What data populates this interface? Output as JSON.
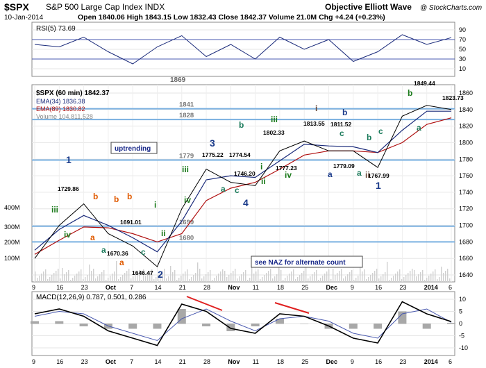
{
  "header": {
    "symbol": "$SPX",
    "description": "S&P 500 Large Cap Index  INDX",
    "date": "10-Jan-2014",
    "quote": "Open 1840.06  High 1843.15  Low 1832.43  Close 1842.37  Volume 21.0M  Chg +4.24 (+0.23%)",
    "brand": "Objective Elliott Wave",
    "credit": "@ StockCharts.com"
  },
  "rsi": {
    "label": "RSI(5) 73.69",
    "ticks": [
      "90",
      "70",
      "50",
      "30",
      "10"
    ],
    "lower_text": "1869"
  },
  "price": {
    "title": "$SPX (60 min) 1842.37",
    "legend": [
      {
        "text": "EMA(34) 1836.38",
        "color": "#1a2a7a"
      },
      {
        "text": "EMA(89) 1830.82",
        "color": "#b01010"
      },
      {
        "text": "Volume 104,811,528",
        "color": "#888888"
      }
    ],
    "y_ticks": [
      "1860",
      "1840",
      "1820",
      "1800",
      "1780",
      "1760",
      "1740",
      "1720",
      "1700",
      "1680",
      "1660",
      "1640"
    ],
    "vol_ticks": [
      "400M",
      "300M",
      "200M",
      "100M"
    ],
    "levels": [
      "1841",
      "1828",
      "1779",
      "1699",
      "1680"
    ],
    "boxes": [
      "uptrending",
      "see NAZ for alternate count"
    ],
    "annotations": [
      {
        "text": "1",
        "color": "#1a3a8a"
      },
      {
        "text": "iii",
        "color": "#1a7a1a"
      },
      {
        "text": "iv",
        "color": "#1a7a1a"
      },
      {
        "text": "1729.86",
        "color": "#000000"
      },
      {
        "text": "b",
        "color": "#e05a00"
      },
      {
        "text": "a",
        "color": "#e05a00"
      },
      {
        "text": "b",
        "color": "#e05a00"
      },
      {
        "text": "a",
        "color": "#e05a00"
      },
      {
        "text": "b",
        "color": "#e05a00"
      },
      {
        "text": "1691.01",
        "color": "#000000"
      },
      {
        "text": "a",
        "color": "#1a7a5a"
      },
      {
        "text": "1670.36",
        "color": "#000000"
      },
      {
        "text": "c",
        "color": "#1a7a5a"
      },
      {
        "text": "1646.47",
        "color": "#000000"
      },
      {
        "text": "2",
        "color": "#1a3a8a"
      },
      {
        "text": "i",
        "color": "#1a7a1a"
      },
      {
        "text": "ii",
        "color": "#1a7a1a"
      },
      {
        "text": "iii",
        "color": "#1a7a1a"
      },
      {
        "text": "iv",
        "color": "#1a7a1a"
      },
      {
        "text": "3",
        "color": "#1a3a8a"
      },
      {
        "text": "1775.22",
        "color": "#000000"
      },
      {
        "text": "b",
        "color": "#1a7a5a"
      },
      {
        "text": "1774.54",
        "color": "#000000"
      },
      {
        "text": "a",
        "color": "#1a7a5a"
      },
      {
        "text": "c",
        "color": "#1a7a5a"
      },
      {
        "text": "1746.20",
        "color": "#000000"
      },
      {
        "text": "4",
        "color": "#1a3a8a"
      },
      {
        "text": "i",
        "color": "#1a7a1a"
      },
      {
        "text": "ii",
        "color": "#1a7a1a"
      },
      {
        "text": "iii",
        "color": "#1a7a1a"
      },
      {
        "text": "1802.33",
        "color": "#000000"
      },
      {
        "text": "1777.23",
        "color": "#000000"
      },
      {
        "text": "iv",
        "color": "#1a7a1a"
      },
      {
        "text": "i",
        "color": "#6a4a3a"
      },
      {
        "text": "1813.55",
        "color": "#000000"
      },
      {
        "text": "c",
        "color": "#1a7a5a"
      },
      {
        "text": "1779.09",
        "color": "#000000"
      },
      {
        "text": "a",
        "color": "#1a3a8a"
      },
      {
        "text": "b",
        "color": "#1a3a8a"
      },
      {
        "text": "1811.52",
        "color": "#000000"
      },
      {
        "text": "a",
        "color": "#1a7a5a"
      },
      {
        "text": "b",
        "color": "#1a7a5a"
      },
      {
        "text": "c",
        "color": "#1a7a5a"
      },
      {
        "text": "1767.99",
        "color": "#000000"
      },
      {
        "text": "ii",
        "color": "#6a4a3a"
      },
      {
        "text": "1",
        "color": "#1a3a8a"
      },
      {
        "text": "1849.44",
        "color": "#000000"
      },
      {
        "text": "b",
        "color": "#1a7a1a"
      },
      {
        "text": "1823.73",
        "color": "#000000"
      },
      {
        "text": "a",
        "color": "#1a7a5a"
      }
    ]
  },
  "macd": {
    "label": "MACD(12,26,9) 0.787, 0.501, 0.286",
    "ticks": [
      "10",
      "5",
      "0",
      "-5",
      "-10"
    ]
  },
  "x_axis": {
    "labels": [
      "9",
      "16",
      "23",
      "Oct",
      "7",
      "14",
      "21",
      "28",
      "Nov",
      "11",
      "18",
      "25",
      "Dec",
      "9",
      "16",
      "23",
      "2014",
      "6"
    ]
  },
  "chart_data": {
    "type": "line",
    "title": "$SPX (60 min) 1842.37",
    "x": [
      "9",
      "16",
      "23",
      "Oct",
      "7",
      "14",
      "21",
      "28",
      "Nov",
      "11",
      "18",
      "25",
      "Dec",
      "9",
      "16",
      "23",
      "2014",
      "6"
    ],
    "ylim": [
      1635,
      1865
    ],
    "series": [
      {
        "name": "$SPX (60 min)",
        "color": "#000000",
        "values": [
          1660,
          1700,
          1726,
          1690,
          1675,
          1650,
          1720,
          1768,
          1752,
          1748,
          1790,
          1802,
          1790,
          1790,
          1770,
          1832,
          1845,
          1840
        ]
      },
      {
        "name": "EMA(34)",
        "color": "#1a2a7a",
        "values": [
          1670,
          1695,
          1712,
          1700,
          1685,
          1668,
          1705,
          1755,
          1760,
          1758,
          1778,
          1798,
          1796,
          1795,
          1788,
          1815,
          1838,
          1838
        ]
      },
      {
        "name": "EMA(89)",
        "color": "#b01010",
        "values": [
          1665,
          1682,
          1698,
          1697,
          1690,
          1680,
          1690,
          1730,
          1745,
          1752,
          1768,
          1785,
          1790,
          1790,
          1788,
          1800,
          1822,
          1830
        ]
      }
    ],
    "horizontal_levels": [
      1841,
      1828,
      1779,
      1699,
      1680
    ],
    "rsi": [
      60,
      55,
      75,
      45,
      20,
      55,
      78,
      35,
      60,
      30,
      75,
      50,
      70,
      25,
      45,
      80,
      60,
      74
    ],
    "macd": {
      "macd": [
        4,
        6,
        3,
        -3,
        -6,
        -9,
        8,
        5,
        -2,
        -4,
        4,
        3,
        -1,
        -6,
        -8,
        9,
        4,
        0.8
      ],
      "signal": [
        3,
        5,
        4,
        -1,
        -4,
        -7,
        2,
        6,
        1,
        -3,
        2,
        3,
        1,
        -4,
        -6,
        4,
        6,
        0.5
      ]
    },
    "xlabel": "",
    "ylabel": ""
  }
}
